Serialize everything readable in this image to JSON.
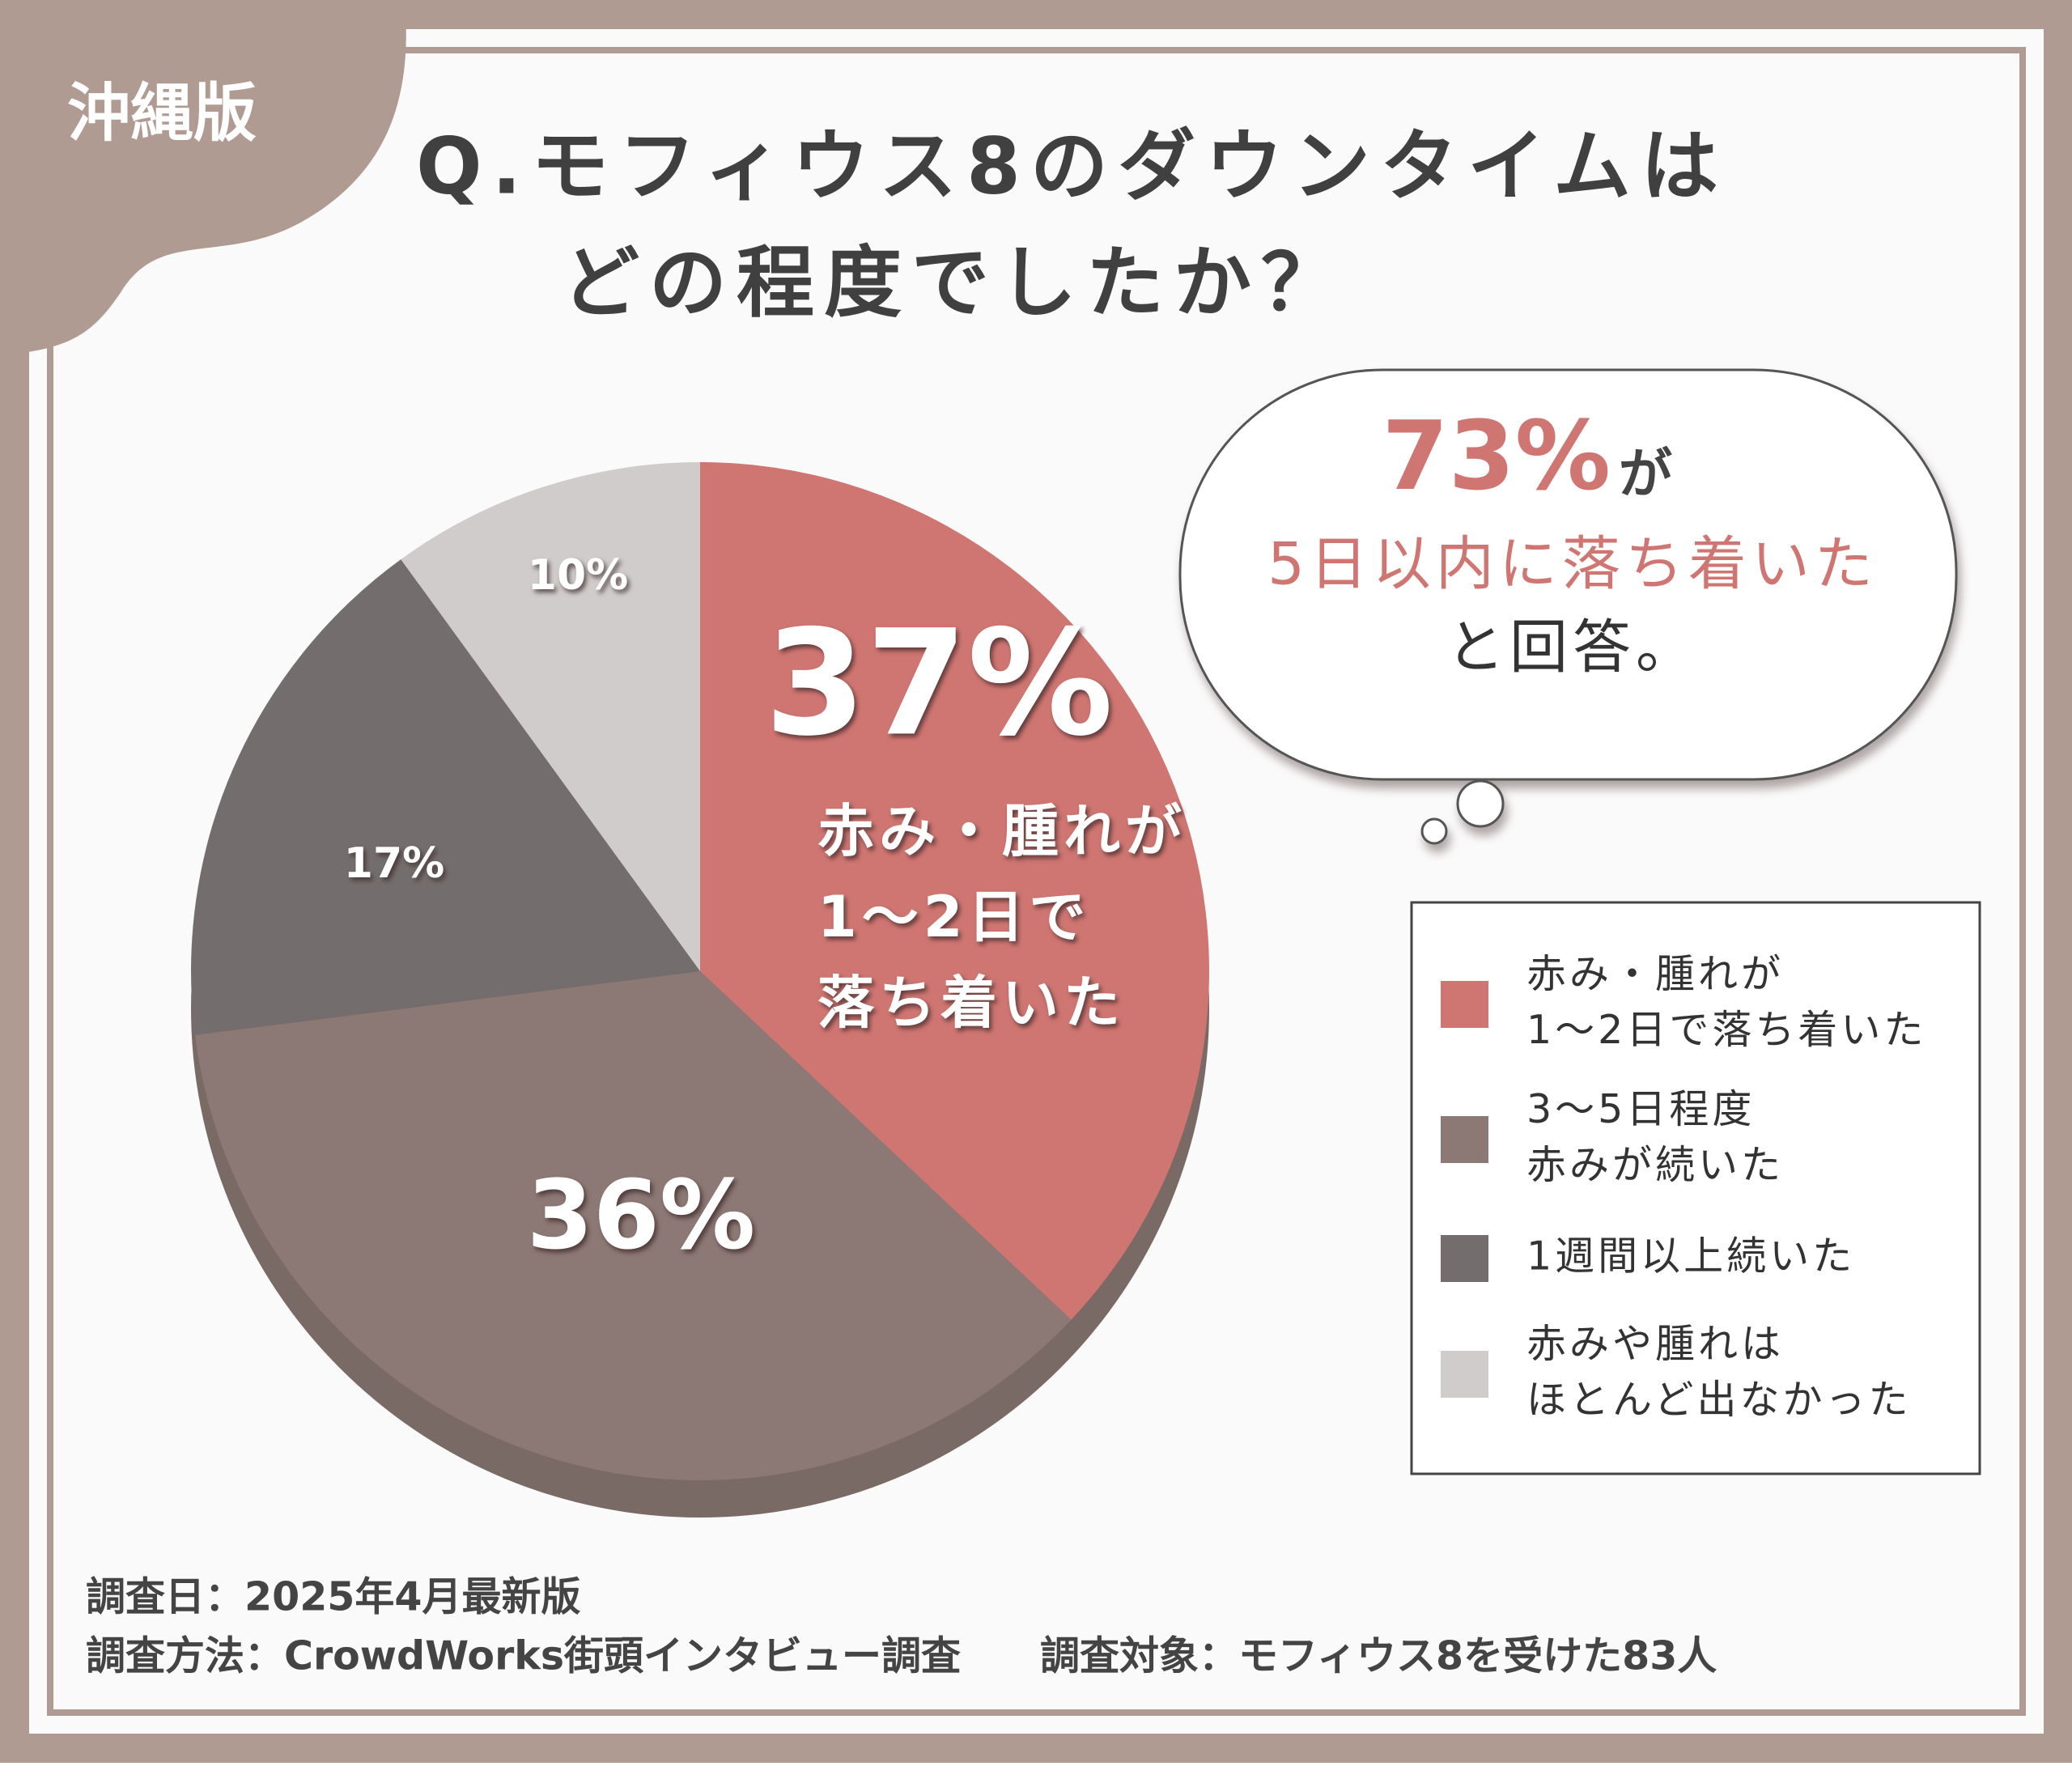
{
  "badge": "沖縄版",
  "chart_data": {
    "type": "pie",
    "title_lines": [
      "Q.モフィウス8のダウンタイムは",
      "どの程度でしたか？"
    ],
    "categories": [
      [
        "赤み・腫れが",
        "1〜2日で落ち着いた"
      ],
      [
        "3〜5日程度",
        "赤みが続いた"
      ],
      [
        "1週間以上続いた"
      ],
      [
        "赤みや腫れは",
        "ほとんど出なかった"
      ]
    ],
    "values": [
      37,
      36,
      17,
      10
    ],
    "value_labels": [
      "37%",
      "36%",
      "17%",
      "10%"
    ],
    "colors": [
      "#d07672",
      "#8c7874",
      "#736e6d",
      "#cfcccb"
    ],
    "slice_note": [
      "赤み・腫れが",
      "1〜2日で",
      "落ち着いた"
    ],
    "callout": {
      "highlight": "73%",
      "particle": "が",
      "line2": "5日以内に落ち着いた",
      "line3": "と回答。"
    }
  },
  "footer": [
    "調査日：2025年4月最新版",
    "調査方法：CrowdWorks街頭インタビュー調査",
    "調査対象：モフィウス8を受けた83人"
  ]
}
